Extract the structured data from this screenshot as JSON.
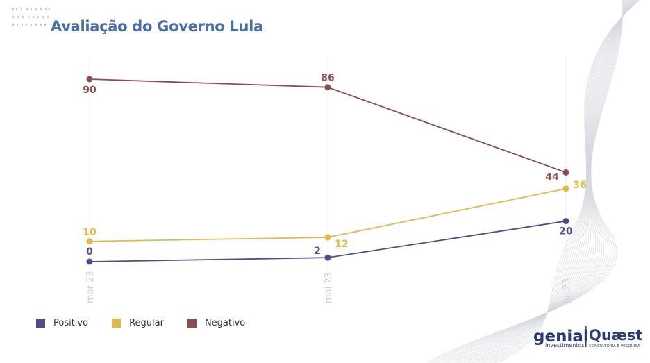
{
  "page": {
    "title": "Avaliação do Governo Lula"
  },
  "colors": {
    "title": "#4a6fa5",
    "positivo": "#534b8c",
    "regular": "#dfba4e",
    "negativo": "#8c4f50",
    "tick": "#cfcfcf"
  },
  "chart_data": {
    "type": "line",
    "title": "Avaliação do Governo Lula",
    "x": [
      "mar 23",
      "mai 23",
      "jul 23"
    ],
    "ylim": [
      0,
      100
    ],
    "grid": "vertical",
    "legend_position": "bottom-left",
    "series": [
      {
        "name": "Positivo",
        "color": "#534b8c",
        "values": [
          0,
          2,
          20
        ],
        "labels": [
          "0",
          "2",
          "20"
        ]
      },
      {
        "name": "Regular",
        "color": "#dfba4e",
        "values": [
          10,
          12,
          36
        ],
        "labels": [
          "10",
          "12",
          "36"
        ]
      },
      {
        "name": "Negativo",
        "color": "#8c4f50",
        "values": [
          90,
          86,
          44
        ],
        "labels": [
          "90",
          "86",
          "44"
        ]
      }
    ]
  },
  "legend": [
    {
      "label": "Positivo",
      "color": "#534b8c"
    },
    {
      "label": "Regular",
      "color": "#dfba4e"
    },
    {
      "label": "Negativo",
      "color": "#8c4f50"
    }
  ],
  "logos": {
    "genial": "genial",
    "genial_sub": "investimentos",
    "quaest": "Quæst",
    "quaest_sub": "CONSULTORIA E PESQUISA"
  }
}
